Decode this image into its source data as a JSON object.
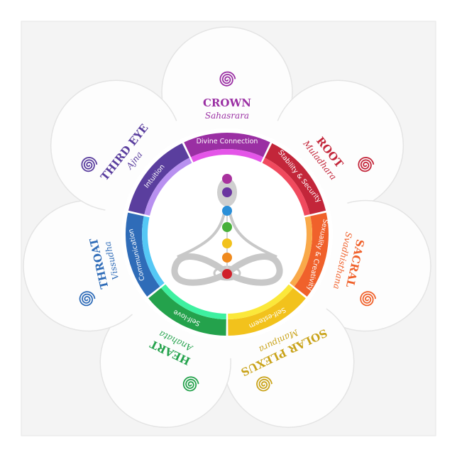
{
  "chakras": [
    {
      "name": "CROWN",
      "sanskrit": "Sahasrara",
      "quality": "Divine Connection",
      "color": "#9a2fa3",
      "light": "#e455e8"
    },
    {
      "name": "ROOT",
      "sanskrit": "Muladhara",
      "quality": "Stability & Security",
      "color": "#c3263a",
      "light": "#f04a5e"
    },
    {
      "name": "SACRAL",
      "sanskrit": "Svadhisthana",
      "quality": "Sexuality & Creativity",
      "color": "#f0612b",
      "light": "#f9a94a"
    },
    {
      "name": "SOLAR PLEXUS",
      "sanskrit": "Manipura",
      "quality": "Self-esteem",
      "color": "#f2c21c",
      "light": "#fbe83a",
      "textColor": "#c9a31a"
    },
    {
      "name": "HEART",
      "sanskrit": "Anahata",
      "quality": "Self-love",
      "color": "#24a24c",
      "light": "#3ef0a0"
    },
    {
      "name": "THROAT",
      "sanskrit": "Vissudha",
      "quality": "Communication",
      "color": "#2f6cb8",
      "light": "#55c8f5"
    },
    {
      "name": "THIRD EYE",
      "sanskrit": "Ajna",
      "quality": "Intuition",
      "color": "#5a3e9e",
      "light": "#b890f0"
    }
  ],
  "figure_dots": [
    "#a8329e",
    "#6a35a0",
    "#2a8fd8",
    "#48b03a",
    "#f2c21c",
    "#f08a1e",
    "#d0202a"
  ]
}
